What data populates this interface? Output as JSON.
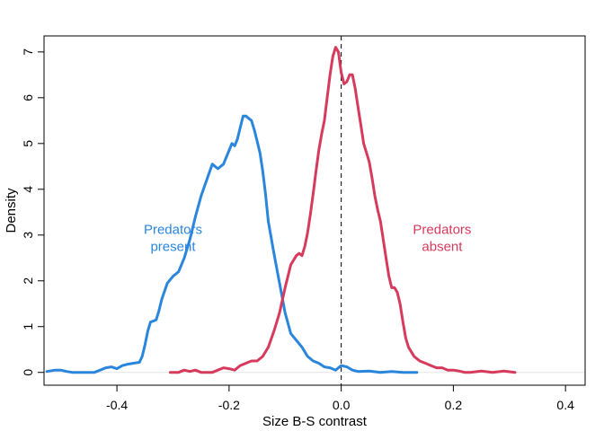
{
  "chart_data": {
    "type": "line",
    "title": "",
    "xlabel": "Size B-S contrast",
    "ylabel": "Density",
    "xlim": [
      -0.53,
      0.435
    ],
    "ylim": [
      -0.28,
      7.35
    ],
    "x_ticks": [
      -0.4,
      -0.2,
      0.0,
      0.2,
      0.4
    ],
    "x_tick_labels": [
      "-0.4",
      "-0.2",
      "0.0",
      "0.2",
      "0.4"
    ],
    "y_ticks": [
      0,
      1,
      2,
      3,
      4,
      5,
      6,
      7
    ],
    "y_tick_labels": [
      "0",
      "1",
      "2",
      "3",
      "4",
      "5",
      "6",
      "7"
    ],
    "grid": false,
    "reference_line": {
      "x": 0,
      "style": "dashed",
      "color": "#000000"
    },
    "baseline": {
      "y": 0,
      "color": "#e6e6e6"
    },
    "series": [
      {
        "color": "#2a86dc",
        "x": [
          -0.525,
          -0.51,
          -0.5,
          -0.49,
          -0.48,
          -0.46,
          -0.44,
          -0.43,
          -0.42,
          -0.41,
          -0.4,
          -0.39,
          -0.38,
          -0.37,
          -0.36,
          -0.355,
          -0.35,
          -0.345,
          -0.34,
          -0.335,
          -0.33,
          -0.325,
          -0.32,
          -0.31,
          -0.3,
          -0.29,
          -0.28,
          -0.27,
          -0.26,
          -0.25,
          -0.24,
          -0.23,
          -0.22,
          -0.21,
          -0.2,
          -0.195,
          -0.19,
          -0.185,
          -0.18,
          -0.175,
          -0.17,
          -0.165,
          -0.16,
          -0.155,
          -0.15,
          -0.145,
          -0.14,
          -0.135,
          -0.13,
          -0.12,
          -0.11,
          -0.1,
          -0.09,
          -0.08,
          -0.07,
          -0.06,
          -0.05,
          -0.04,
          -0.03,
          -0.02,
          -0.01,
          0.0,
          0.01,
          0.02,
          0.03,
          0.05,
          0.07,
          0.09,
          0.11,
          0.135
        ],
        "y": [
          0.02,
          0.05,
          0.05,
          0.02,
          0.0,
          0.0,
          0.0,
          0.05,
          0.1,
          0.12,
          0.08,
          0.15,
          0.18,
          0.2,
          0.22,
          0.35,
          0.6,
          0.9,
          1.1,
          1.12,
          1.15,
          1.35,
          1.6,
          1.95,
          2.1,
          2.2,
          2.5,
          2.9,
          3.4,
          3.85,
          4.2,
          4.55,
          4.45,
          4.55,
          4.85,
          5.0,
          4.95,
          5.1,
          5.35,
          5.6,
          5.6,
          5.55,
          5.5,
          5.3,
          5.05,
          4.8,
          4.4,
          3.9,
          3.3,
          2.6,
          1.95,
          1.3,
          0.85,
          0.7,
          0.55,
          0.35,
          0.25,
          0.2,
          0.12,
          0.1,
          0.05,
          0.15,
          0.12,
          0.05,
          0.02,
          0.03,
          0.0,
          0.02,
          0.0,
          0.0
        ]
      },
      {
        "color": "#d63a5c",
        "x": [
          -0.305,
          -0.29,
          -0.28,
          -0.27,
          -0.26,
          -0.25,
          -0.24,
          -0.23,
          -0.22,
          -0.21,
          -0.2,
          -0.19,
          -0.18,
          -0.17,
          -0.16,
          -0.15,
          -0.14,
          -0.13,
          -0.12,
          -0.11,
          -0.1,
          -0.09,
          -0.08,
          -0.075,
          -0.07,
          -0.065,
          -0.06,
          -0.055,
          -0.05,
          -0.045,
          -0.04,
          -0.035,
          -0.03,
          -0.025,
          -0.02,
          -0.015,
          -0.01,
          -0.005,
          0.0,
          0.005,
          0.01,
          0.015,
          0.02,
          0.025,
          0.03,
          0.035,
          0.04,
          0.045,
          0.05,
          0.055,
          0.06,
          0.065,
          0.07,
          0.075,
          0.08,
          0.085,
          0.09,
          0.095,
          0.1,
          0.105,
          0.11,
          0.115,
          0.12,
          0.125,
          0.13,
          0.14,
          0.15,
          0.16,
          0.17,
          0.18,
          0.19,
          0.2,
          0.21,
          0.22,
          0.23,
          0.25,
          0.27,
          0.29,
          0.31
        ],
        "y": [
          0.0,
          0.0,
          0.05,
          0.02,
          0.05,
          0.0,
          0.0,
          0.0,
          0.05,
          0.1,
          0.08,
          0.05,
          0.15,
          0.2,
          0.25,
          0.25,
          0.35,
          0.55,
          0.9,
          1.3,
          1.85,
          2.35,
          2.55,
          2.6,
          2.55,
          2.75,
          3.05,
          3.45,
          3.9,
          4.4,
          4.85,
          5.2,
          5.5,
          6.0,
          6.5,
          6.9,
          7.1,
          7.0,
          6.55,
          6.3,
          6.35,
          6.5,
          6.5,
          6.2,
          5.8,
          5.4,
          5.0,
          4.8,
          4.6,
          4.25,
          3.85,
          3.55,
          3.3,
          2.9,
          2.5,
          2.1,
          1.85,
          1.85,
          1.75,
          1.5,
          1.1,
          0.75,
          0.55,
          0.45,
          0.35,
          0.25,
          0.2,
          0.15,
          0.1,
          0.1,
          0.05,
          0.05,
          0.03,
          0.0,
          0.0,
          0.03,
          0.0,
          0.03,
          0.0
        ]
      }
    ],
    "annotations": [
      {
        "lines": [
          "Predators",
          "present"
        ],
        "x": -0.3,
        "y": 2.95,
        "color": "#2a86dc"
      },
      {
        "lines": [
          "Predators",
          "absent"
        ],
        "x": 0.18,
        "y": 2.95,
        "color": "#d63a5c"
      }
    ]
  }
}
